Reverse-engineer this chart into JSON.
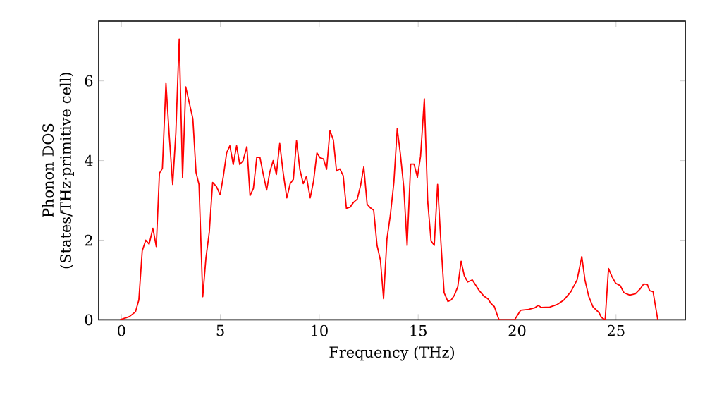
{
  "chart_data": {
    "type": "line",
    "xlabel": "Frequency (THz)",
    "ylabel": "Phonon DOS (States/THz·primitive cell)",
    "xlim": [
      -1.15,
      28.5
    ],
    "ylim": [
      0,
      7.5
    ],
    "xticks": [
      0,
      5,
      10,
      15,
      20,
      25
    ],
    "yticks": [
      0,
      2,
      4,
      6
    ],
    "grid": false,
    "marker": "none",
    "line_style": "solid",
    "series": [
      {
        "color": "#ff0000",
        "x": [
          -0.07,
          0.4,
          0.71,
          0.88,
          1.05,
          1.23,
          1.4,
          1.59,
          1.76,
          1.92,
          2.07,
          2.25,
          2.42,
          2.59,
          2.75,
          2.92,
          3.09,
          3.25,
          3.42,
          3.61,
          3.77,
          3.92,
          4.11,
          4.27,
          4.44,
          4.61,
          4.8,
          4.99,
          5.15,
          5.32,
          5.48,
          5.65,
          5.82,
          5.98,
          6.15,
          6.34,
          6.5,
          6.67,
          6.84,
          7.0,
          7.17,
          7.34,
          7.5,
          7.67,
          7.83,
          8.0,
          8.17,
          8.36,
          8.53,
          8.69,
          8.85,
          9.02,
          9.19,
          9.35,
          9.54,
          9.71,
          9.88,
          10.04,
          10.21,
          10.37,
          10.54,
          10.71,
          10.87,
          11.04,
          11.21,
          11.37,
          11.56,
          11.73,
          11.92,
          12.09,
          12.25,
          12.42,
          12.59,
          12.75,
          12.92,
          13.09,
          13.25,
          13.42,
          13.59,
          13.77,
          13.94,
          14.1,
          14.27,
          14.44,
          14.62,
          14.79,
          14.96,
          15.12,
          15.31,
          15.48,
          15.65,
          15.81,
          15.98,
          16.15,
          16.31,
          16.5,
          16.67,
          16.83,
          17.0,
          17.17,
          17.33,
          17.5,
          17.74,
          18.09,
          18.33,
          18.52,
          18.68,
          18.85,
          19.04,
          19.09,
          19.87,
          20.18,
          20.58,
          20.89,
          21.06,
          21.23,
          21.65,
          22.01,
          22.37,
          22.72,
          23.03,
          23.27,
          23.43,
          23.62,
          23.83,
          24.14,
          24.26,
          24.45,
          24.62,
          24.79,
          24.98,
          25.21,
          25.4,
          25.69,
          25.97,
          26.21,
          26.4,
          26.58,
          26.7,
          26.87,
          27.11
        ],
        "values": [
          0,
          0.08,
          0.2,
          0.5,
          1.73,
          2.0,
          1.9,
          2.3,
          1.84,
          3.68,
          3.8,
          5.95,
          4.6,
          3.4,
          4.7,
          7.05,
          3.57,
          5.85,
          5.47,
          5.05,
          3.7,
          3.4,
          0.58,
          1.55,
          2.2,
          3.45,
          3.35,
          3.14,
          3.6,
          4.2,
          4.37,
          3.9,
          4.37,
          3.9,
          4.0,
          4.35,
          3.12,
          3.3,
          4.08,
          4.08,
          3.65,
          3.26,
          3.71,
          4.0,
          3.65,
          4.43,
          3.71,
          3.06,
          3.42,
          3.53,
          4.5,
          3.77,
          3.42,
          3.6,
          3.06,
          3.48,
          4.19,
          4.07,
          4.04,
          3.78,
          4.75,
          4.52,
          3.74,
          3.79,
          3.62,
          2.8,
          2.83,
          2.95,
          3.03,
          3.38,
          3.84,
          2.9,
          2.81,
          2.75,
          1.87,
          1.5,
          0.53,
          2.03,
          2.62,
          3.45,
          4.8,
          4.16,
          3.33,
          1.87,
          3.91,
          3.91,
          3.58,
          4.11,
          5.55,
          2.98,
          1.98,
          1.87,
          3.4,
          1.93,
          0.68,
          0.46,
          0.5,
          0.62,
          0.83,
          1.47,
          1.11,
          0.95,
          1.0,
          0.73,
          0.59,
          0.53,
          0.41,
          0.33,
          0.06,
          0,
          0,
          0.24,
          0.26,
          0.3,
          0.36,
          0.31,
          0.32,
          0.38,
          0.5,
          0.71,
          1.0,
          1.59,
          1.0,
          0.59,
          0.33,
          0.18,
          0.06,
          0,
          1.29,
          1.09,
          0.92,
          0.86,
          0.68,
          0.62,
          0.65,
          0.77,
          0.9,
          0.89,
          0.73,
          0.71,
          0
        ]
      }
    ]
  }
}
